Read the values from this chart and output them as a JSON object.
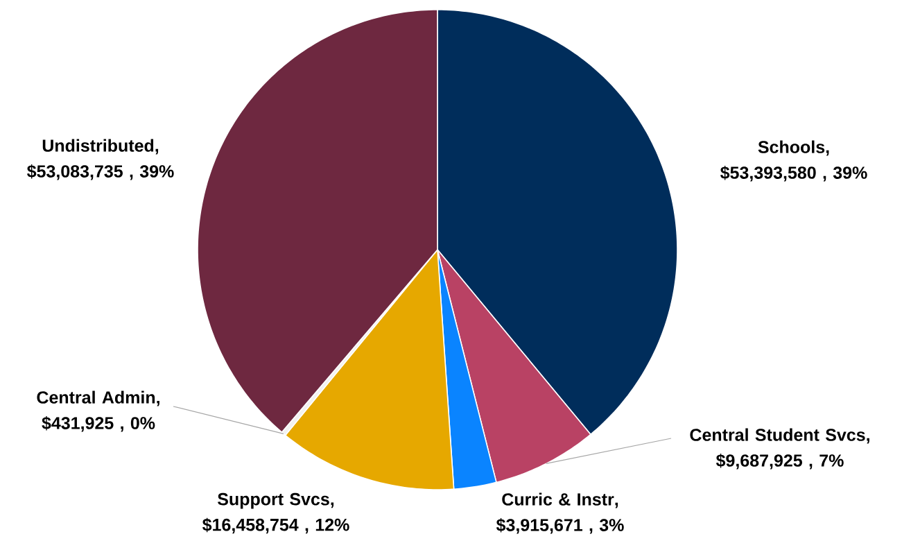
{
  "chart_data": {
    "type": "pie",
    "categories": [
      "Schools",
      "Central Student Svcs",
      "Curric & Instr",
      "Support Svcs",
      "Central Admin",
      "Undistributed"
    ],
    "values": [
      53393580,
      9687925,
      3915671,
      16458754,
      431925,
      53083735
    ],
    "colors": [
      "#002d5b",
      "#b94264",
      "#0a84ff",
      "#e6a800",
      "#f2f2f2",
      "#6e2840"
    ],
    "value_labels": [
      ", $53,393,580 , 39%",
      ", $9,687,925 , 7%",
      ", $3,915,671 , 3%",
      ", $16,458,754 , 12%",
      ", $431,925 , 0%",
      ", $53,083,735 , 39%"
    ]
  }
}
